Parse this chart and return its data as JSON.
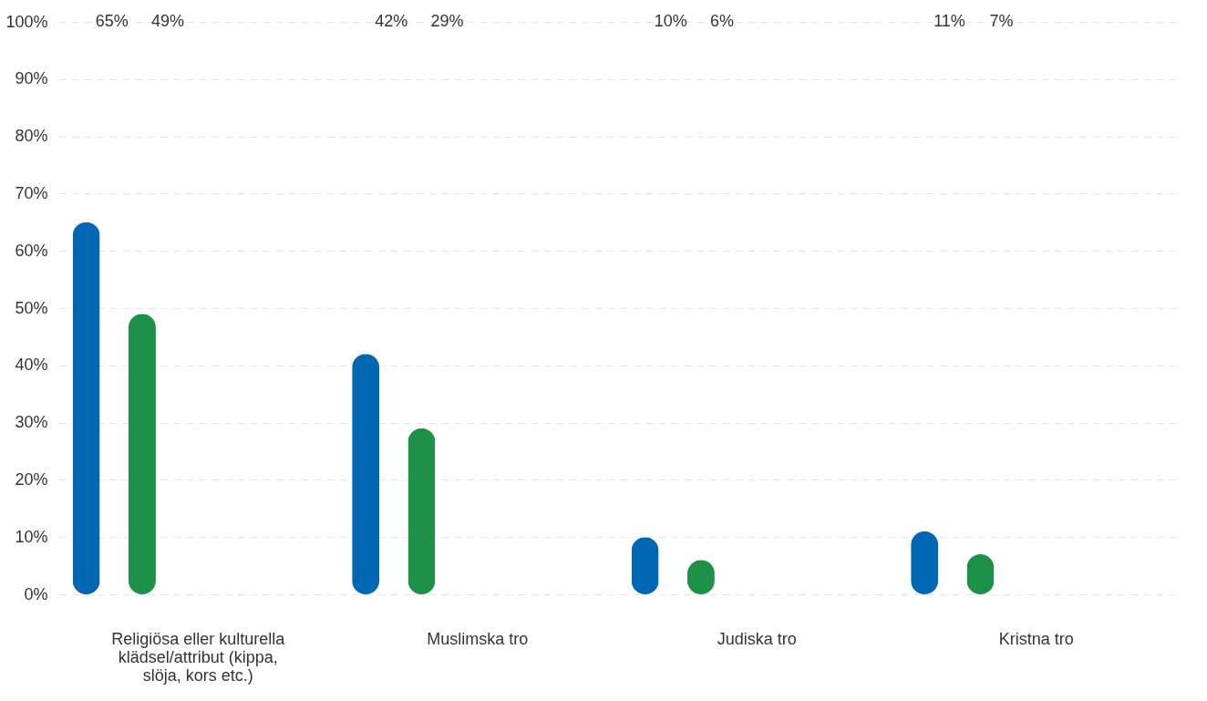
{
  "chart_data": {
    "type": "bar",
    "categories": [
      "Religiösa eller kulturella klädsel/attribut (kippa, slöja, kors etc.)",
      "Muslimska tro",
      "Judiska tro",
      "Kristna tro"
    ],
    "series": [
      {
        "color": "#0067b3",
        "values": [
          65,
          42,
          10,
          11
        ]
      },
      {
        "color": "#1d9148",
        "values": [
          49,
          29,
          6,
          7
        ]
      }
    ],
    "ylim": [
      0,
      100
    ],
    "yticks": [
      {
        "value": 0,
        "label": "0%"
      },
      {
        "value": 10,
        "label": "10%"
      },
      {
        "value": 20,
        "label": "20%"
      },
      {
        "value": 30,
        "label": "30%"
      },
      {
        "value": 40,
        "label": "40%"
      },
      {
        "value": 50,
        "label": "50%"
      },
      {
        "value": 60,
        "label": "60%"
      },
      {
        "value": 70,
        "label": "70%"
      },
      {
        "value": 80,
        "label": "80%"
      },
      {
        "value": 90,
        "label": "90%"
      },
      {
        "value": 100,
        "label": "100%"
      }
    ],
    "value_labels": [
      [
        "65%",
        "42%",
        "10%",
        "11%"
      ],
      [
        "49%",
        "29%",
        "6%",
        "7%"
      ]
    ],
    "grid": "y"
  }
}
